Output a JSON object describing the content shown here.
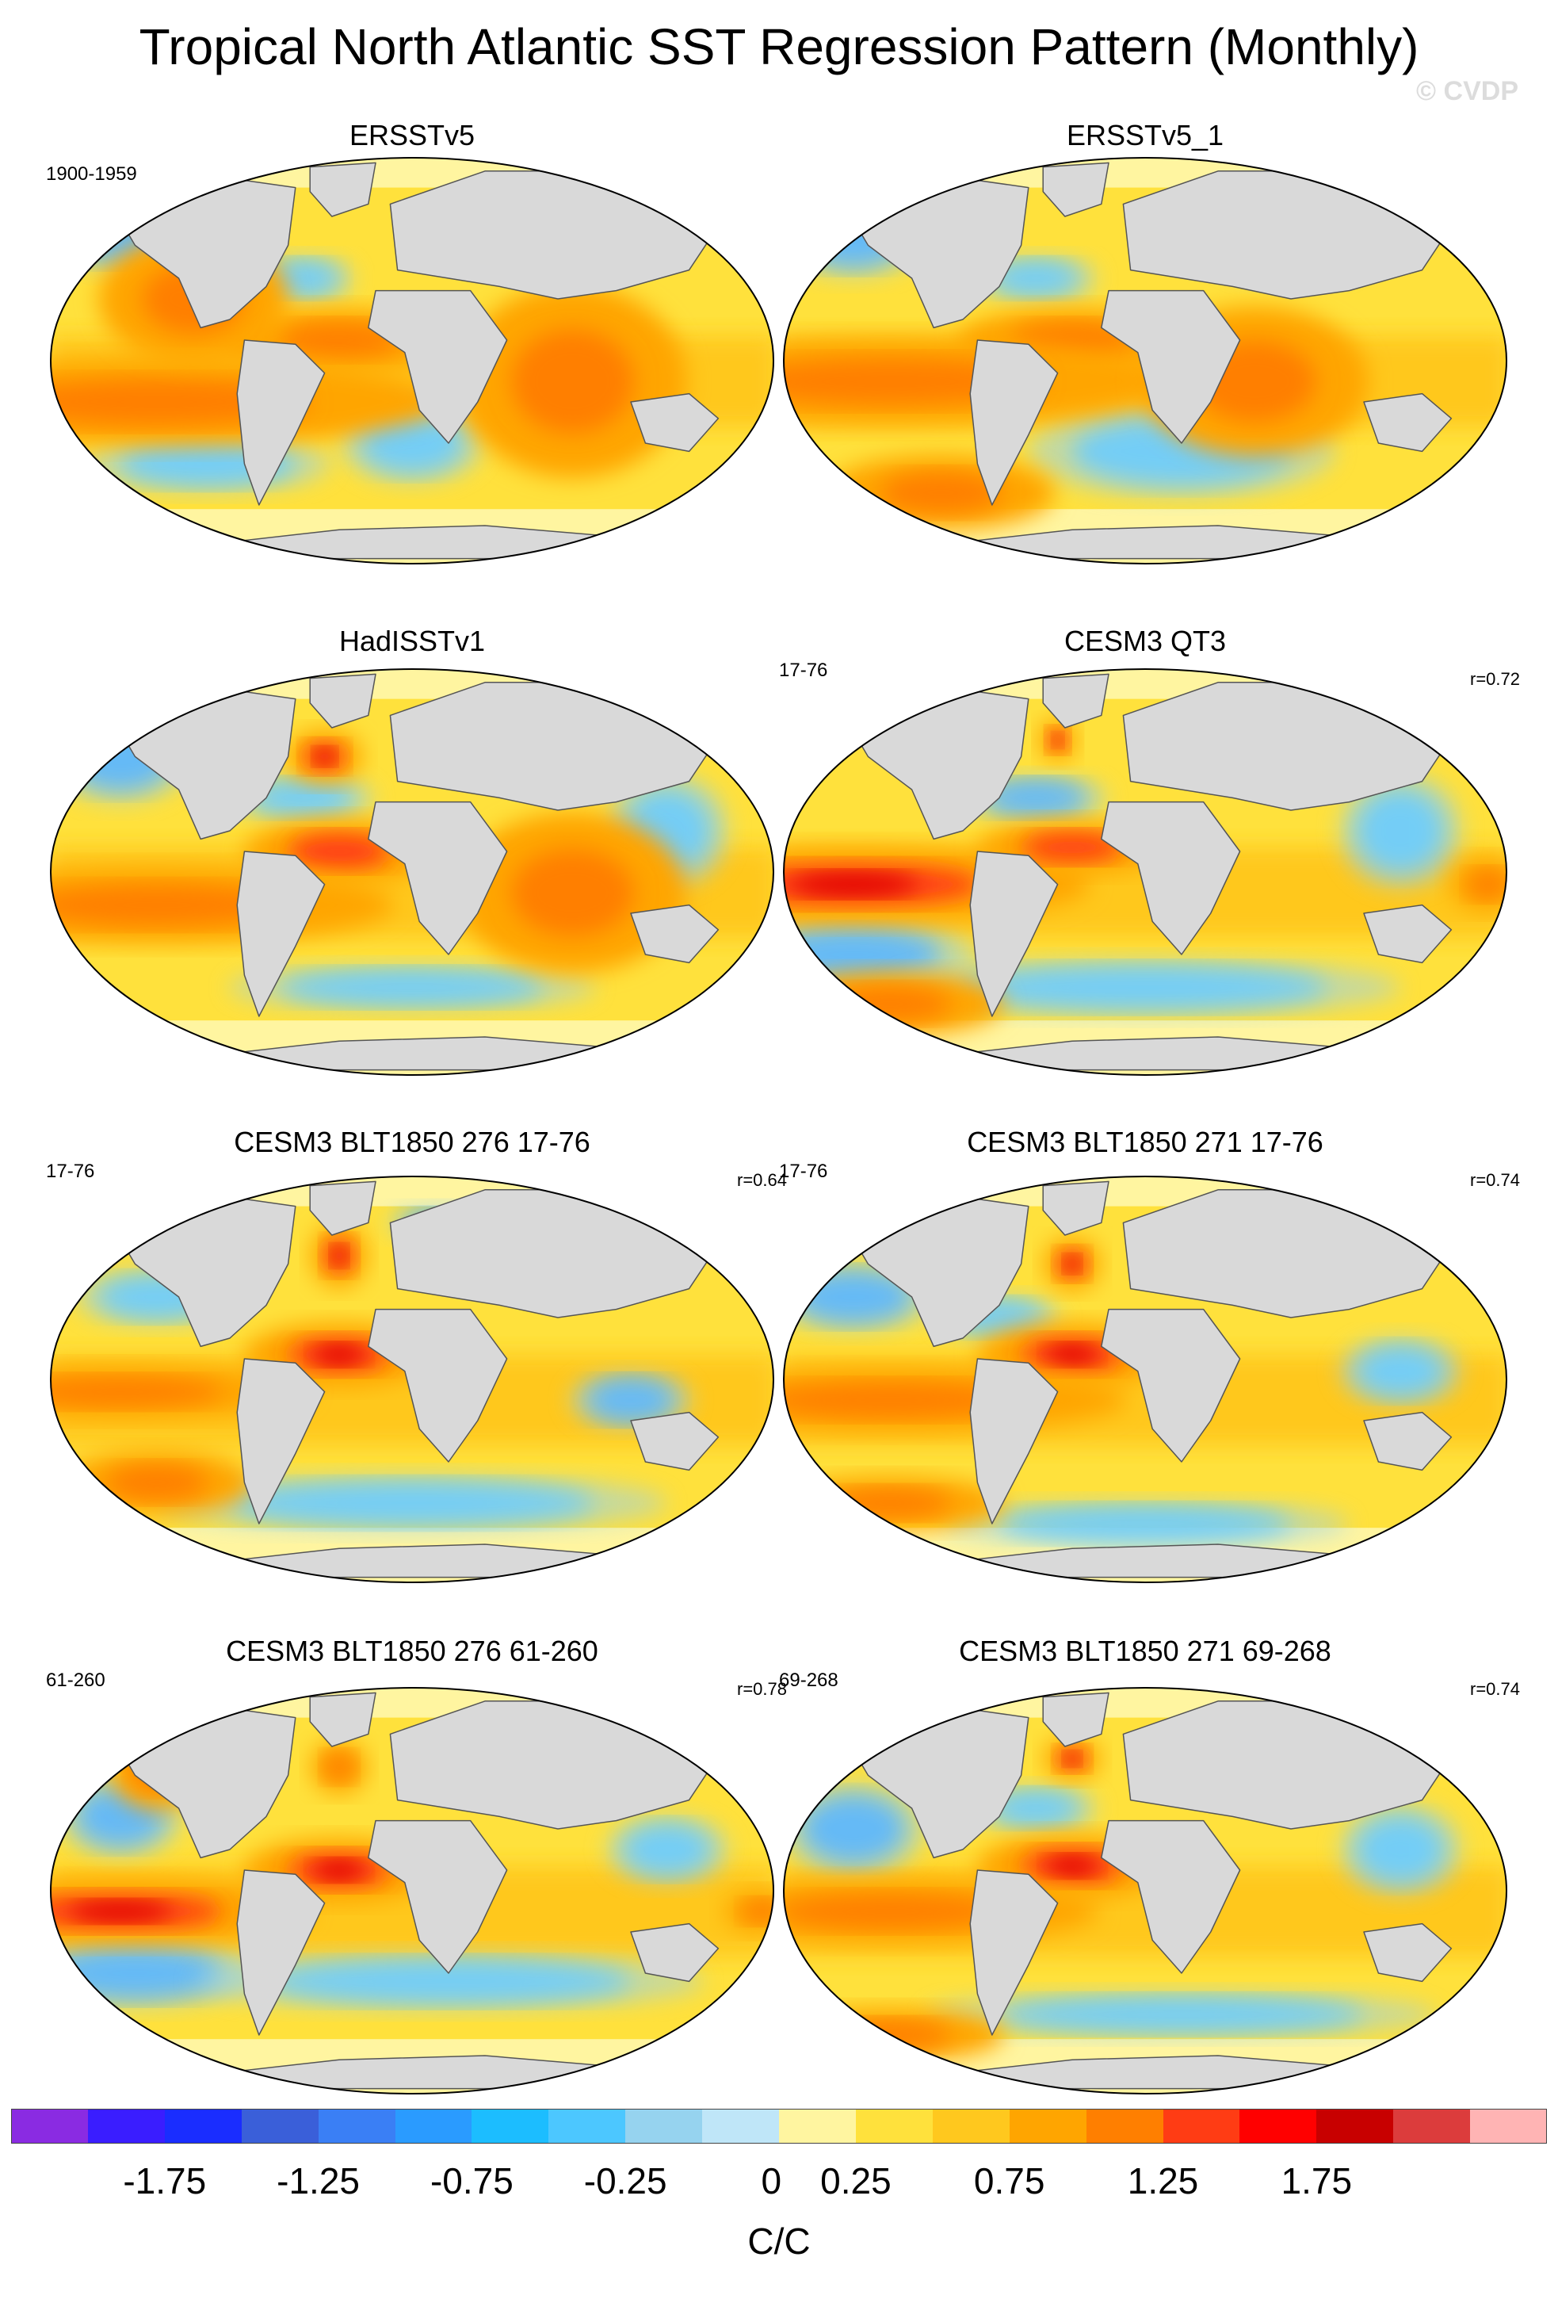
{
  "title": "Tropical North Atlantic SST Regression Pattern (Monthly)",
  "copyright": "© CVDP",
  "panels": [
    {
      "title": "ERSSTv5",
      "years": "1900-1959",
      "corr": "",
      "warm": [
        [
          0.4,
          0.45,
          0.12,
          0.06,
          0.55
        ],
        [
          0.15,
          0.6,
          0.3,
          0.08,
          0.35
        ],
        [
          0.2,
          0.35,
          0.1,
          0.12,
          0.45
        ],
        [
          0.72,
          0.55,
          0.12,
          0.18,
          0.3
        ]
      ],
      "cool": [
        [
          0.1,
          0.2,
          0.06,
          0.06,
          0.5
        ],
        [
          0.5,
          0.7,
          0.07,
          0.07,
          0.45
        ],
        [
          0.22,
          0.75,
          0.12,
          0.05,
          0.4
        ],
        [
          0.35,
          0.3,
          0.05,
          0.04,
          0.45
        ]
      ]
    },
    {
      "title": "ERSSTv5_1",
      "years": "",
      "corr": "",
      "warm": [
        [
          0.4,
          0.45,
          0.12,
          0.06,
          0.55
        ],
        [
          0.15,
          0.55,
          0.3,
          0.08,
          0.35
        ],
        [
          0.22,
          0.82,
          0.12,
          0.07,
          0.4
        ],
        [
          0.65,
          0.55,
          0.12,
          0.14,
          0.25
        ]
      ],
      "cool": [
        [
          0.1,
          0.2,
          0.07,
          0.07,
          0.5
        ],
        [
          0.55,
          0.72,
          0.15,
          0.08,
          0.35
        ],
        [
          0.35,
          0.3,
          0.06,
          0.04,
          0.45
        ],
        [
          0.7,
          0.22,
          0.08,
          0.06,
          0.3
        ]
      ]
    },
    {
      "title": "HadISSTv1",
      "years": "",
      "corr": "",
      "warm": [
        [
          0.4,
          0.45,
          0.1,
          0.06,
          0.65
        ],
        [
          0.38,
          0.22,
          0.04,
          0.05,
          0.7
        ],
        [
          0.15,
          0.58,
          0.25,
          0.07,
          0.3
        ],
        [
          0.72,
          0.55,
          0.12,
          0.15,
          0.3
        ]
      ],
      "cool": [
        [
          0.1,
          0.22,
          0.07,
          0.08,
          0.5
        ],
        [
          0.35,
          0.32,
          0.07,
          0.04,
          0.45
        ],
        [
          0.85,
          0.4,
          0.06,
          0.1,
          0.35
        ],
        [
          0.5,
          0.78,
          0.18,
          0.04,
          0.3
        ]
      ]
    },
    {
      "title": "CESM3 QT3",
      "years": "17-76",
      "corr": "r=0.72",
      "warm": [
        [
          0.1,
          0.53,
          0.25,
          0.07,
          0.7
        ],
        [
          0.4,
          0.44,
          0.1,
          0.05,
          0.65
        ],
        [
          0.38,
          0.18,
          0.02,
          0.04,
          0.75
        ],
        [
          0.15,
          0.82,
          0.12,
          0.06,
          0.4
        ],
        [
          0.97,
          0.53,
          0.04,
          0.05,
          0.5
        ]
      ],
      "cool": [
        [
          0.1,
          0.7,
          0.12,
          0.06,
          0.55
        ],
        [
          0.35,
          0.32,
          0.07,
          0.04,
          0.5
        ],
        [
          0.5,
          0.78,
          0.25,
          0.05,
          0.4
        ],
        [
          0.85,
          0.4,
          0.06,
          0.1,
          0.35
        ]
      ]
    },
    {
      "title": "CESM3 BLT1850 276 17-76",
      "years": "17-76",
      "corr": "r=0.64",
      "warm": [
        [
          0.4,
          0.44,
          0.1,
          0.06,
          0.7
        ],
        [
          0.4,
          0.2,
          0.03,
          0.06,
          0.8
        ],
        [
          0.1,
          0.53,
          0.2,
          0.05,
          0.55
        ],
        [
          0.93,
          0.12,
          0.04,
          0.05,
          0.55
        ],
        [
          0.15,
          0.75,
          0.1,
          0.06,
          0.35
        ]
      ],
      "cool": [
        [
          0.15,
          0.3,
          0.08,
          0.05,
          0.4
        ],
        [
          0.55,
          0.12,
          0.06,
          0.03,
          0.5
        ],
        [
          0.8,
          0.55,
          0.06,
          0.05,
          0.5
        ],
        [
          0.5,
          0.8,
          0.25,
          0.05,
          0.35
        ]
      ]
    },
    {
      "title": "CESM3 BLT1850 271 17-76",
      "years": "17-76",
      "corr": "r=0.74",
      "warm": [
        [
          0.4,
          0.44,
          0.1,
          0.06,
          0.7
        ],
        [
          0.4,
          0.22,
          0.03,
          0.05,
          0.7
        ],
        [
          0.15,
          0.55,
          0.25,
          0.06,
          0.55
        ],
        [
          0.15,
          0.8,
          0.12,
          0.05,
          0.45
        ]
      ],
      "cool": [
        [
          0.1,
          0.3,
          0.08,
          0.06,
          0.5
        ],
        [
          0.3,
          0.35,
          0.06,
          0.04,
          0.45
        ],
        [
          0.5,
          0.85,
          0.2,
          0.04,
          0.35
        ],
        [
          0.85,
          0.48,
          0.06,
          0.06,
          0.45
        ]
      ]
    },
    {
      "title": "CESM3 BLT1850 276 61-260",
      "years": "61-260",
      "corr": "r=0.78",
      "warm": [
        [
          0.4,
          0.45,
          0.1,
          0.06,
          0.7
        ],
        [
          0.1,
          0.55,
          0.2,
          0.06,
          0.7
        ],
        [
          0.98,
          0.55,
          0.04,
          0.04,
          0.6
        ],
        [
          0.15,
          0.2,
          0.05,
          0.08,
          0.45
        ],
        [
          0.4,
          0.2,
          0.03,
          0.05,
          0.5
        ]
      ],
      "cool": [
        [
          0.12,
          0.7,
          0.12,
          0.06,
          0.55
        ],
        [
          0.1,
          0.32,
          0.06,
          0.07,
          0.5
        ],
        [
          0.55,
          0.72,
          0.25,
          0.05,
          0.35
        ],
        [
          0.85,
          0.4,
          0.06,
          0.06,
          0.4
        ]
      ]
    },
    {
      "title": "CESM3 BLT1850 271 69-268",
      "years": "69-268",
      "corr": "r=0.74",
      "warm": [
        [
          0.4,
          0.44,
          0.1,
          0.06,
          0.7
        ],
        [
          0.4,
          0.18,
          0.03,
          0.04,
          0.85
        ],
        [
          0.15,
          0.55,
          0.22,
          0.06,
          0.5
        ],
        [
          0.15,
          0.85,
          0.12,
          0.05,
          0.4
        ]
      ],
      "cool": [
        [
          0.1,
          0.35,
          0.07,
          0.08,
          0.5
        ],
        [
          0.85,
          0.4,
          0.06,
          0.08,
          0.4
        ],
        [
          0.55,
          0.8,
          0.25,
          0.04,
          0.35
        ],
        [
          0.35,
          0.3,
          0.06,
          0.04,
          0.45
        ]
      ]
    }
  ],
  "colorbar": {
    "unit": "C/C",
    "tick_labels": [
      "-1.75",
      "-1.25",
      "-0.75",
      "-0.25",
      "0",
      "0.25",
      "0.75",
      "1.25",
      "1.75"
    ],
    "colors": [
      "#8a2be2",
      "#3a1dff",
      "#1a2dff",
      "#3a5fd9",
      "#3a7ff5",
      "#2a9bff",
      "#1cbdff",
      "#4cc7ff",
      "#96d3ef",
      "#bfe6f8",
      "#fff5a0",
      "#ffe13c",
      "#ffc81e",
      "#ffa500",
      "#ff7f00",
      "#ff3c14",
      "#ff0000",
      "#c80000",
      "#dc3c3c",
      "#ffb4b4"
    ]
  }
}
